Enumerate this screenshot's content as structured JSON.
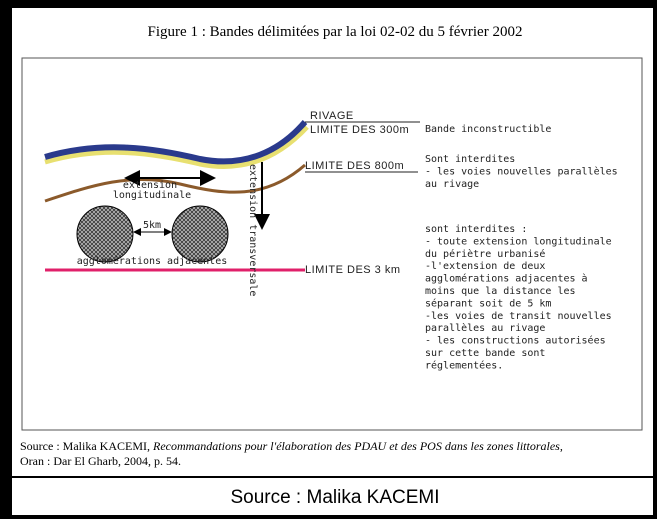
{
  "figure": {
    "title": "Figure 1 : Bandes délimitées par la loi 02-02 du 5 février 2002",
    "labels": {
      "rivage": "RIVAGE",
      "limit_300": "LIMITE DES 300m",
      "limit_800": "LIMITE DES 800m",
      "limit_3km": "LIMITE DES 3 km",
      "extension_longitudinale": [
        "extension",
        "longitudinale"
      ],
      "extension_transversale": "extension transversale",
      "distance": "5km",
      "agglomerations": "agglomérations adjacentes"
    },
    "bands": [
      {
        "lines": [
          "Bande inconstructible"
        ]
      },
      {
        "lines": [
          "Sont interdites",
          "- les voies nouvelles parallèles",
          "au rivage"
        ]
      },
      {
        "lines": [
          "sont interdites :",
          "- toute extension longitudinale",
          "du périètre urbanisé",
          "-l'extension de deux",
          "agglomérations adjacentes à",
          "moins que la distance les",
          "séparant soit de 5 km",
          "-les voies de transit nouvelles",
          "parallèles au rivage",
          "- les constructions autorisées",
          "sur cette bande sont",
          "réglementées."
        ]
      }
    ],
    "source": {
      "prefix": "Source : Malika KACEMI, ",
      "work": "Recommandations pour l'élaboration des PDAU et des POS dans les zones littorales,",
      "rest": "Oran : Dar El Gharb, 2004, p. 54."
    }
  },
  "caption": "Source : Malika KACEMI"
}
